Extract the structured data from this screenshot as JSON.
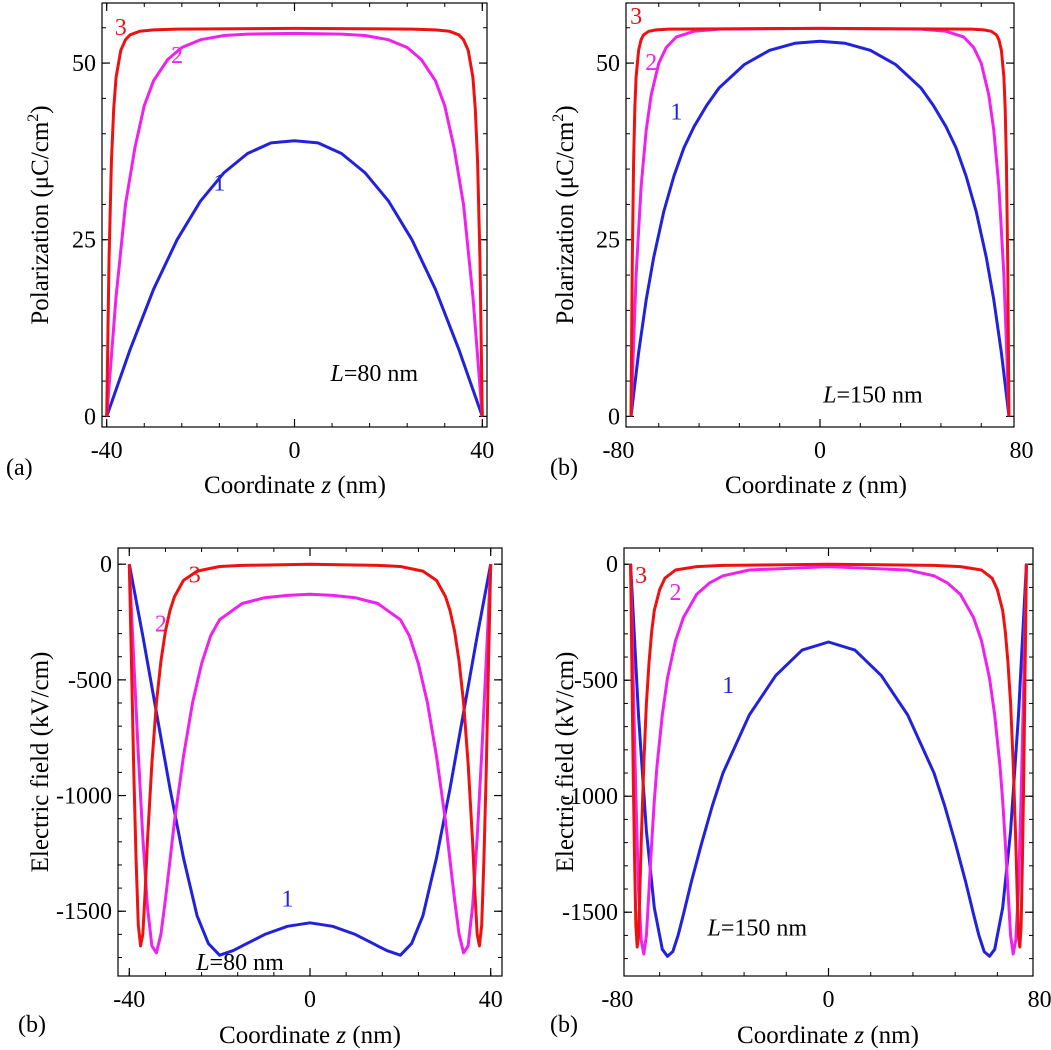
{
  "chart_data": [
    {
      "id": "a",
      "type": "line",
      "panel_label": "(a)",
      "xlabel": {
        "pre": "Coordinate ",
        "ital": "z",
        "post": " (nm)"
      },
      "ylabel": {
        "pre": "Polarization (μC/cm",
        "sup": "2",
        "post": ")"
      },
      "xlim": [
        -41,
        41
      ],
      "ylim": [
        -1.5,
        58.5
      ],
      "xticks": [
        -40,
        0,
        40
      ],
      "yticks": [
        0,
        25,
        50
      ],
      "xtick_labels": [
        "-40",
        "0",
        "40"
      ],
      "ytick_labels": [
        "0",
        "25",
        "50"
      ],
      "annotation": {
        "ital": "L",
        "post": "=80 nm",
        "x": 17,
        "y": 5
      },
      "series": [
        {
          "label": "1",
          "color": "#2222dd",
          "x": [
            -40,
            -35,
            -30,
            -25,
            -20,
            -15,
            -10,
            -5,
            0,
            5,
            10,
            15,
            20,
            25,
            30,
            35,
            40
          ],
          "y": [
            0,
            9.5,
            18,
            25,
            30.5,
            34.5,
            37.2,
            38.7,
            39,
            38.7,
            37.2,
            34.5,
            30.5,
            25,
            18,
            9.5,
            0
          ],
          "label_pos": [
            -16,
            32
          ]
        },
        {
          "label": "2",
          "color": "#ee22ee",
          "x": [
            -40,
            -38,
            -36,
            -34,
            -32,
            -30,
            -27,
            -24,
            -20,
            -15,
            -10,
            0,
            10,
            15,
            20,
            24,
            27,
            30,
            32,
            34,
            36,
            38,
            40
          ],
          "y": [
            0,
            17,
            30,
            38,
            44,
            47.5,
            50.5,
            52.2,
            53.3,
            53.9,
            54.1,
            54.2,
            54.1,
            53.9,
            53.3,
            52.2,
            50.5,
            47.5,
            44,
            38,
            30,
            17,
            0
          ],
          "label_pos": [
            -25,
            50
          ]
        },
        {
          "label": "3",
          "color": "#ee1111",
          "x": [
            -40,
            -39.5,
            -39,
            -38.5,
            -38,
            -37,
            -36,
            -35,
            -33,
            -30,
            -25,
            0,
            25,
            30,
            33,
            35,
            36,
            37,
            38,
            38.5,
            39,
            39.5,
            40
          ],
          "y": [
            0,
            22,
            36,
            43.5,
            48,
            51.8,
            53.3,
            54,
            54.5,
            54.7,
            54.8,
            54.9,
            54.8,
            54.7,
            54.5,
            54,
            53.3,
            51.8,
            48,
            43.5,
            36,
            22,
            0
          ],
          "label_pos": [
            -37,
            54
          ]
        }
      ]
    },
    {
      "id": "b-top",
      "type": "line",
      "panel_label": "(b)",
      "xlabel": {
        "pre": "Coordinate ",
        "ital": "z",
        "post": " (nm)"
      },
      "ylabel": {
        "pre": "Polarization (μC/cm",
        "sup": "2",
        "post": ")"
      },
      "xlim": [
        -77,
        77
      ],
      "ylim": [
        -1.5,
        58.5
      ],
      "xticks": [
        -80,
        0,
        80
      ],
      "yticks": [
        0,
        25,
        50
      ],
      "xtick_labels": [
        "-80",
        "0",
        "80"
      ],
      "ytick_labels": [
        "0",
        "25",
        "50"
      ],
      "annotation": {
        "ital": "L",
        "post": "=150 nm",
        "x": 21,
        "y": 2
      },
      "series": [
        {
          "label": "1",
          "color": "#2222dd",
          "x": [
            -75,
            -72,
            -69,
            -66,
            -62,
            -58,
            -54,
            -50,
            -45,
            -40,
            -30,
            -20,
            -10,
            0,
            10,
            20,
            30,
            40,
            45,
            50,
            54,
            58,
            62,
            66,
            69,
            72,
            75
          ],
          "y": [
            0,
            9,
            16.5,
            22.5,
            29,
            34,
            38,
            41,
            44,
            46.5,
            49.8,
            51.8,
            52.8,
            53.1,
            52.8,
            51.8,
            49.8,
            46.5,
            44,
            41,
            38,
            34,
            29,
            22.5,
            16.5,
            9,
            0
          ],
          "label_pos": [
            -57,
            42
          ]
        },
        {
          "label": "2",
          "color": "#ee22ee",
          "x": [
            -75,
            -73,
            -71,
            -69,
            -67,
            -64,
            -61,
            -57,
            -50,
            -40,
            0,
            40,
            50,
            57,
            61,
            64,
            67,
            69,
            71,
            73,
            75
          ],
          "y": [
            0,
            20,
            32.5,
            40.5,
            45.5,
            50,
            52.2,
            53.7,
            54.5,
            54.8,
            54.9,
            54.8,
            54.5,
            53.7,
            52.2,
            50,
            45.5,
            40.5,
            32.5,
            20,
            0
          ],
          "label_pos": [
            -67,
            49
          ]
        },
        {
          "label": "3",
          "color": "#ee1111",
          "x": [
            -75,
            -74.5,
            -74,
            -73.5,
            -73,
            -72,
            -71,
            -70,
            -68,
            -65,
            -60,
            0,
            60,
            65,
            68,
            70,
            71,
            72,
            73,
            73.5,
            74,
            74.5,
            75
          ],
          "y": [
            0,
            22,
            36,
            43.5,
            48,
            51.8,
            53.3,
            54,
            54.5,
            54.7,
            54.8,
            54.9,
            54.8,
            54.7,
            54.5,
            54,
            53.3,
            51.8,
            48,
            43.5,
            36,
            22,
            0
          ],
          "label_pos": [
            -73,
            55.5
          ]
        }
      ]
    },
    {
      "id": "b-left",
      "type": "line",
      "panel_label": "(b)",
      "xlabel": {
        "pre": "Coordinate ",
        "ital": "z",
        "post": " (nm)"
      },
      "ylabel": {
        "pre": "Electric field (kV/cm)",
        "sup": "",
        "post": ""
      },
      "xlim": [
        -42.5,
        42.5
      ],
      "ylim": [
        -1780,
        70
      ],
      "xticks": [
        -40,
        0,
        40
      ],
      "yticks": [
        0,
        -500,
        -1000,
        -1500
      ],
      "xtick_labels": [
        "-40",
        "0",
        "40"
      ],
      "ytick_labels": [
        "0",
        "-500",
        "-1000",
        "-1500"
      ],
      "annotation": {
        "ital": "L",
        "post": "=80 nm",
        "x": -15.5,
        "y": -1755
      },
      "series": [
        {
          "label": "1",
          "color": "#2222dd",
          "x": [
            -40,
            -37,
            -34,
            -31,
            -28,
            -25,
            -22.5,
            -20,
            -17,
            -14,
            -10,
            -5,
            0,
            5,
            10,
            14,
            17,
            20,
            22.5,
            25,
            28,
            31,
            34,
            37,
            40
          ],
          "y": [
            0,
            -310,
            -640,
            -970,
            -1270,
            -1520,
            -1640,
            -1690,
            -1670,
            -1640,
            -1600,
            -1565,
            -1550,
            -1565,
            -1600,
            -1640,
            -1670,
            -1690,
            -1640,
            -1520,
            -1270,
            -970,
            -640,
            -310,
            0
          ],
          "label_pos": [
            -5,
            -1480
          ]
        },
        {
          "label": "2",
          "color": "#ee22ee",
          "x": [
            -40,
            -39,
            -38,
            -37,
            -36,
            -35,
            -34,
            -33,
            -32,
            -31,
            -30,
            -28,
            -26,
            -24,
            -22,
            -20,
            -15,
            -10,
            -5,
            0,
            5,
            10,
            15,
            20,
            22,
            24,
            26,
            28,
            30,
            31,
            32,
            33,
            34,
            35,
            36,
            37,
            38,
            39,
            40
          ],
          "y": [
            0,
            -420,
            -820,
            -1180,
            -1480,
            -1650,
            -1680,
            -1600,
            -1450,
            -1280,
            -1110,
            -830,
            -600,
            -430,
            -310,
            -240,
            -170,
            -145,
            -135,
            -130,
            -135,
            -145,
            -170,
            -240,
            -310,
            -430,
            -600,
            -830,
            -1110,
            -1280,
            -1450,
            -1600,
            -1680,
            -1650,
            -1480,
            -1180,
            -820,
            -420,
            0
          ],
          "label_pos": [
            -33,
            -290
          ]
        },
        {
          "label": "3",
          "color": "#ee1111",
          "x": [
            -40,
            -39.5,
            -39,
            -38.5,
            -38,
            -37.5,
            -37,
            -36.5,
            -36,
            -35,
            -34,
            -33,
            -32,
            -31,
            -30,
            -28,
            -25,
            -20,
            -15,
            0,
            15,
            20,
            25,
            28,
            30,
            31,
            32,
            33,
            34,
            35,
            36,
            36.5,
            37,
            37.5,
            38,
            38.5,
            39,
            39.5,
            40
          ],
          "y": [
            0,
            -450,
            -900,
            -1280,
            -1560,
            -1650,
            -1600,
            -1420,
            -1200,
            -860,
            -600,
            -420,
            -290,
            -200,
            -140,
            -70,
            -30,
            -10,
            -5,
            0,
            -5,
            -10,
            -30,
            -70,
            -140,
            -200,
            -290,
            -420,
            -600,
            -860,
            -1200,
            -1420,
            -1600,
            -1650,
            -1560,
            -1280,
            -900,
            -450,
            0
          ],
          "label_pos": [
            -25.5,
            -80
          ]
        }
      ]
    },
    {
      "id": "b-right",
      "type": "line",
      "panel_label": "(b)",
      "xlabel": {
        "pre": "Coordinate ",
        "ital": "z",
        "post": " (nm)"
      },
      "ylabel": {
        "pre": "Electric field (kV/cm)",
        "sup": "",
        "post": ""
      },
      "xlim": [
        -77.5,
        77.5
      ],
      "ylim": [
        -1775,
        70
      ],
      "xticks": [
        -80,
        0,
        80
      ],
      "yticks": [
        0,
        -500,
        -1000,
        -1500
      ],
      "xtick_labels": [
        "-80",
        "0",
        "80"
      ],
      "ytick_labels": [
        "0",
        "-500",
        "-1000",
        "-1500"
      ],
      "annotation": {
        "ital": "L",
        "post": "=150 nm",
        "x": -27,
        "y": -1600
      },
      "series": [
        {
          "label": "1",
          "color": "#2222dd",
          "x": [
            -75,
            -72,
            -69,
            -66,
            -63,
            -61,
            -59,
            -57,
            -55,
            -52,
            -48,
            -44,
            -40,
            -30,
            -20,
            -10,
            0,
            10,
            20,
            30,
            40,
            44,
            48,
            52,
            55,
            57,
            59,
            61,
            63,
            66,
            69,
            72,
            75
          ],
          "y": [
            0,
            -650,
            -1150,
            -1480,
            -1660,
            -1690,
            -1670,
            -1600,
            -1510,
            -1370,
            -1200,
            -1040,
            -900,
            -650,
            -480,
            -370,
            -335,
            -370,
            -480,
            -650,
            -900,
            -1040,
            -1200,
            -1370,
            -1510,
            -1600,
            -1670,
            -1690,
            -1660,
            -1480,
            -1150,
            -650,
            0
          ],
          "label_pos": [
            -38,
            -555
          ]
        },
        {
          "label": "2",
          "color": "#ee22ee",
          "x": [
            -75,
            -74,
            -73,
            -72,
            -71,
            -70,
            -69,
            -68,
            -67,
            -66,
            -65,
            -63,
            -61,
            -58,
            -55,
            -50,
            -45,
            -40,
            -30,
            0,
            30,
            40,
            45,
            50,
            55,
            58,
            61,
            63,
            65,
            66,
            67,
            68,
            69,
            70,
            71,
            72,
            73,
            74,
            75
          ],
          "y": [
            0,
            -500,
            -1000,
            -1400,
            -1620,
            -1680,
            -1600,
            -1400,
            -1200,
            -1020,
            -870,
            -650,
            -490,
            -330,
            -230,
            -130,
            -80,
            -50,
            -25,
            -10,
            -25,
            -50,
            -80,
            -130,
            -230,
            -330,
            -490,
            -650,
            -870,
            -1020,
            -1200,
            -1400,
            -1600,
            -1680,
            -1620,
            -1400,
            -1000,
            -500,
            0
          ],
          "label_pos": [
            -58,
            -155
          ]
        },
        {
          "label": "3",
          "color": "#ee1111",
          "x": [
            -75,
            -74.5,
            -74,
            -73.5,
            -73,
            -72.5,
            -72,
            -71.5,
            -71,
            -70,
            -69,
            -68,
            -67,
            -66,
            -64,
            -62,
            -58,
            -50,
            -40,
            0,
            40,
            50,
            58,
            62,
            64,
            66,
            67,
            68,
            69,
            70,
            71,
            71.5,
            72,
            72.5,
            73,
            73.5,
            74,
            74.5,
            75
          ],
          "y": [
            0,
            -450,
            -900,
            -1280,
            -1560,
            -1650,
            -1600,
            -1420,
            -1200,
            -860,
            -600,
            -420,
            -290,
            -200,
            -110,
            -60,
            -25,
            -10,
            -5,
            0,
            -5,
            -10,
            -25,
            -60,
            -110,
            -200,
            -290,
            -420,
            -600,
            -860,
            -1200,
            -1420,
            -1600,
            -1650,
            -1560,
            -1280,
            -900,
            -450,
            0
          ],
          "label_pos": [
            -71,
            -80
          ]
        }
      ]
    }
  ]
}
